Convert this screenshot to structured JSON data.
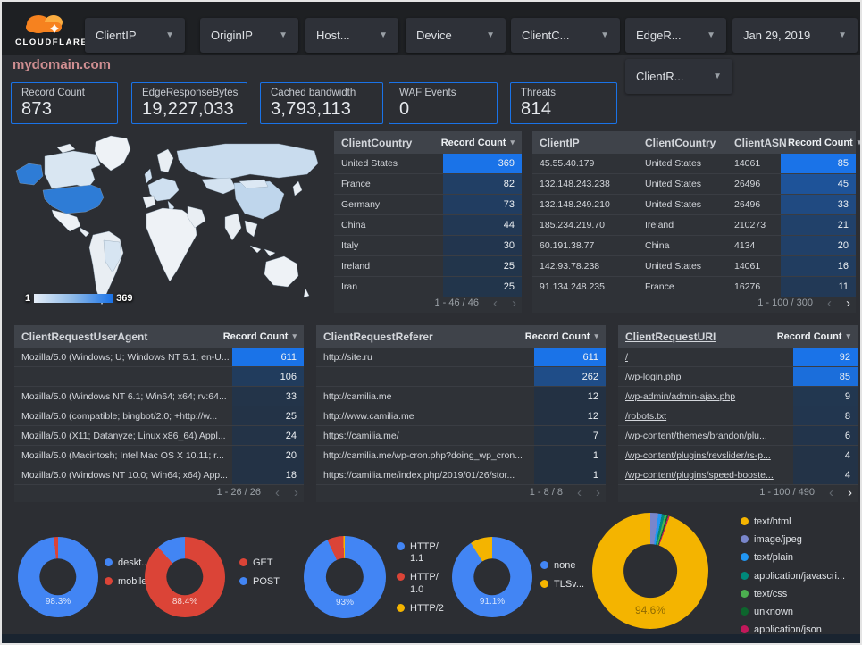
{
  "brand": {
    "name": "CLOUDFLARE"
  },
  "page_title": "mydomain.com",
  "filters": [
    {
      "label": "ClientIP"
    },
    {
      "label": "OriginIP"
    },
    {
      "label": "Host..."
    },
    {
      "label": "Device"
    },
    {
      "label": "ClientC..."
    },
    {
      "label": "EdgeR..."
    },
    {
      "label": "ClientR..."
    }
  ],
  "date_control": {
    "label": "Jan 29, 2019"
  },
  "scorecards": [
    {
      "label": "Record Count",
      "value": "873"
    },
    {
      "label": "EdgeResponseBytes",
      "value": "19,227,033"
    },
    {
      "label": "Cached bandwidth",
      "value": "3,793,113"
    },
    {
      "label": "WAF Events",
      "value": "0"
    },
    {
      "label": "Threats",
      "value": "814"
    }
  ],
  "map": {
    "scale_min": "1",
    "scale_max": "369",
    "low_color": "#e6eef8",
    "high_color": "#1a73e8"
  },
  "tables": {
    "client_country": {
      "columns": [
        "ClientCountry",
        "Record Count"
      ],
      "rows": [
        [
          "United States",
          369
        ],
        [
          "France",
          82
        ],
        [
          "Germany",
          73
        ],
        [
          "China",
          44
        ],
        [
          "Italy",
          30
        ],
        [
          "Ireland",
          25
        ],
        [
          "Iran",
          25
        ]
      ],
      "max": 369,
      "pagination": "1 - 46 / 46",
      "prev_enabled": false,
      "next_enabled": false
    },
    "client_ip": {
      "columns": [
        "ClientIP",
        "ClientCountry",
        "ClientASN",
        "Record Count"
      ],
      "rows": [
        [
          "45.55.40.179",
          "United States",
          "14061",
          85
        ],
        [
          "132.148.243.238",
          "United States",
          "26496",
          45
        ],
        [
          "132.148.249.210",
          "United States",
          "26496",
          33
        ],
        [
          "185.234.219.70",
          "Ireland",
          "210273",
          21
        ],
        [
          "60.191.38.77",
          "China",
          "4134",
          20
        ],
        [
          "142.93.78.238",
          "United States",
          "14061",
          16
        ],
        [
          "91.134.248.235",
          "France",
          "16276",
          11
        ]
      ],
      "max": 85,
      "pagination": "1 - 100 / 300",
      "prev_enabled": false,
      "next_enabled": true
    },
    "user_agent": {
      "columns": [
        "ClientRequestUserAgent",
        "Record Count"
      ],
      "rows": [
        [
          "Mozilla/5.0 (Windows; U; Windows NT 5.1; en-U...",
          611
        ],
        [
          "",
          106
        ],
        [
          "Mozilla/5.0 (Windows NT 6.1; Win64; x64; rv:64...",
          33
        ],
        [
          "Mozilla/5.0 (compatible; bingbot/2.0; +http://w...",
          25
        ],
        [
          "Mozilla/5.0 (X11; Datanyze; Linux x86_64) Appl...",
          24
        ],
        [
          "Mozilla/5.0 (Macintosh; Intel Mac OS X 10.11; r...",
          20
        ],
        [
          "Mozilla/5.0 (Windows NT 10.0; Win64; x64) App...",
          18
        ]
      ],
      "max": 611,
      "pagination": "1 - 26 / 26",
      "prev_enabled": false,
      "next_enabled": false
    },
    "referer": {
      "columns": [
        "ClientRequestReferer",
        "Record Count"
      ],
      "rows": [
        [
          "http://site.ru",
          611
        ],
        [
          "",
          262
        ],
        [
          "http://camilia.me",
          12
        ],
        [
          "http://www.camilia.me",
          12
        ],
        [
          "https://camilia.me/",
          7
        ],
        [
          "http://camilia.me/wp-cron.php?doing_wp_cron...",
          1
        ],
        [
          "https://camilia.me/index.php/2019/01/26/stor...",
          1
        ]
      ],
      "max": 611,
      "pagination": "1 - 8 / 8",
      "prev_enabled": false,
      "next_enabled": false
    },
    "uri": {
      "columns": [
        "ClientRequestURI",
        "Record Count"
      ],
      "rows": [
        [
          "/",
          92
        ],
        [
          "/wp-login.php",
          85
        ],
        [
          "/wp-admin/admin-ajax.php",
          9
        ],
        [
          "/robots.txt",
          8
        ],
        [
          "/wp-content/themes/brandon/plu...",
          6
        ],
        [
          "/wp-content/plugins/revslider/rs-p...",
          4
        ],
        [
          "/wp-content/plugins/speed-booste...",
          4
        ]
      ],
      "max": 92,
      "pagination": "1 - 100 / 490",
      "prev_enabled": false,
      "next_enabled": true
    }
  },
  "heat_colors": {
    "low": "#233040",
    "high": "#1a73e8"
  },
  "donuts": [
    {
      "name": "device-type",
      "label": "98.3%",
      "label_color": "rgba(255,255,255,0.78)",
      "rotation": 0,
      "slices": [
        {
          "name": "deskt...",
          "value": 98.3,
          "color": "#4285f4"
        },
        {
          "name": "mobile",
          "value": 1.7,
          "color": "#db4437"
        }
      ]
    },
    {
      "name": "request-method",
      "label": "88.4%",
      "label_color": "rgba(255,255,255,0.78)",
      "rotation": 0,
      "slices": [
        {
          "name": "GET",
          "value": 88.4,
          "color": "#db4437"
        },
        {
          "name": "POST",
          "value": 11.6,
          "color": "#4285f4"
        }
      ]
    },
    {
      "name": "http-version",
      "label": "93%",
      "label_color": "rgba(255,255,255,0.78)",
      "rotation": 0,
      "slices": [
        {
          "name": "HTTP/\n1.1",
          "value": 93,
          "color": "#4285f4"
        },
        {
          "name": "HTTP/\n1.0",
          "value": 6.4,
          "color": "#db4437"
        },
        {
          "name": "HTTP/2",
          "value": 0.6,
          "color": "#f4b400"
        }
      ]
    },
    {
      "name": "tls-version",
      "label": "91.1%",
      "label_color": "rgba(255,255,255,0.78)",
      "rotation": 0,
      "slices": [
        {
          "name": "none",
          "value": 91.1,
          "color": "#4285f4"
        },
        {
          "name": "TLSv...",
          "value": 8.9,
          "color": "#f4b400"
        }
      ]
    },
    {
      "name": "content-type",
      "label": "94.6%",
      "label_color": "rgba(0,0,0,0.42)",
      "rotation": 19.5,
      "legend_arrows": true,
      "slices": [
        {
          "name": "text/html",
          "value": 94.6,
          "color": "#f4b400"
        },
        {
          "name": "image/jpeg",
          "value": 2.2,
          "color": "#7986cb"
        },
        {
          "name": "text/plain",
          "value": 1.0,
          "color": "#2196f3"
        },
        {
          "name": "application/javascri...",
          "value": 0.8,
          "color": "#00897b"
        },
        {
          "name": "text/css",
          "value": 0.6,
          "color": "#4caf50"
        },
        {
          "name": "unknown",
          "value": 0.4,
          "color": "#0d652d"
        },
        {
          "name": "application/json",
          "value": 0.4,
          "color": "#c2185b"
        }
      ]
    }
  ]
}
